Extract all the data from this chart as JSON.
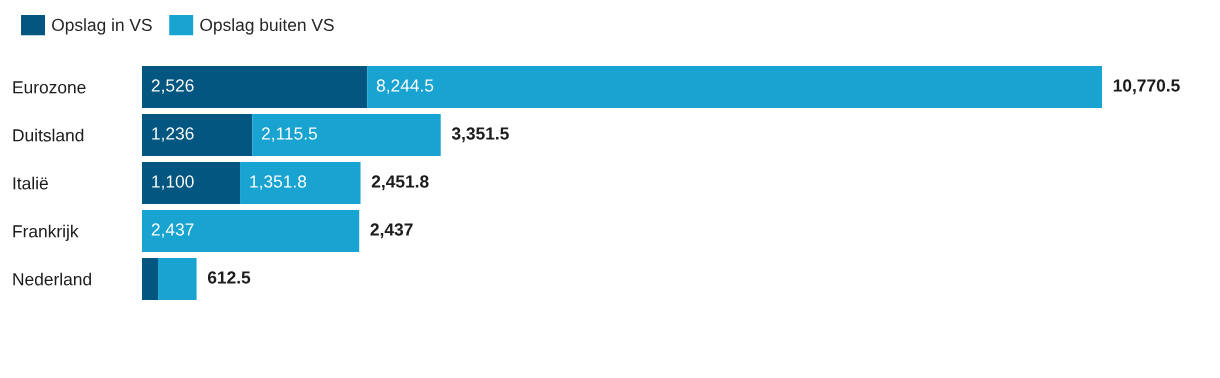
{
  "chart_data": {
    "type": "bar",
    "orientation": "horizontal",
    "stacked": true,
    "categories": [
      "Eurozone",
      "Duitsland",
      "Italië",
      "Frankrijk",
      "Nederland"
    ],
    "series": [
      {
        "name": "Opslag in VS",
        "color": "#03567f",
        "values": [
          2526,
          1236,
          1100,
          0,
          180
        ],
        "value_labels": [
          "2,526",
          "1,236",
          "1,100",
          null,
          null
        ]
      },
      {
        "name": "Opslag buiten VS",
        "color": "#19a3d1",
        "values": [
          8244.5,
          2115.5,
          1351.8,
          2437,
          432.5
        ],
        "value_labels": [
          "8,244.5",
          "2,115.5",
          "1,351.8",
          "2,437",
          null
        ]
      }
    ],
    "totals": [
      "10,770.5",
      "3,351.5",
      "2,451.8",
      "2,437",
      "612.5"
    ],
    "legend": "top left",
    "grid": false
  }
}
